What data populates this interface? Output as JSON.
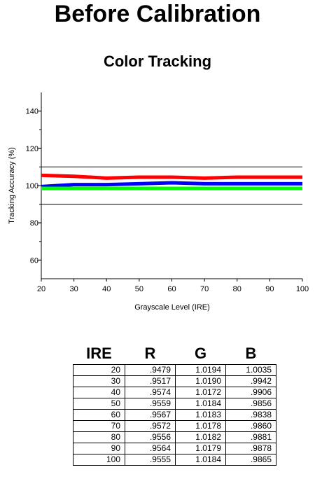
{
  "page": {
    "title": "Before Calibration"
  },
  "chart_data": {
    "type": "line",
    "title": "Color Tracking",
    "xlabel": "Grayscale Level (IRE)",
    "ylabel": "Tracking Accuracy (%)",
    "xlim": [
      20,
      100
    ],
    "ylim": [
      50,
      150
    ],
    "xticks": [
      20,
      30,
      40,
      50,
      60,
      70,
      80,
      90,
      100
    ],
    "yticks": [
      60,
      80,
      100,
      120,
      140
    ],
    "reference_lines": [
      110,
      90
    ],
    "grid": false,
    "x": [
      20,
      30,
      40,
      50,
      60,
      70,
      80,
      90,
      100
    ],
    "series": [
      {
        "color": "#ff0000",
        "values": [
          105.5,
          105.0,
          104.0,
          104.5,
          104.5,
          104.0,
          104.5,
          104.5,
          104.5
        ]
      },
      {
        "color": "#0000ff",
        "values": [
          99.5,
          100.5,
          100.5,
          101.0,
          101.5,
          101.0,
          101.0,
          101.0,
          101.0
        ]
      },
      {
        "color": "#00ff00",
        "values": [
          98.5,
          98.5,
          98.5,
          98.5,
          98.5,
          98.5,
          98.5,
          98.5,
          98.5
        ]
      }
    ]
  },
  "table": {
    "headers": [
      "IRE",
      "R",
      "G",
      "B"
    ],
    "rows": [
      [
        "20",
        ".9479",
        "1.0194",
        "1.0035"
      ],
      [
        "30",
        ".9517",
        "1.0190",
        ".9942"
      ],
      [
        "40",
        ".9574",
        "1.0172",
        ".9906"
      ],
      [
        "50",
        ".9559",
        "1.0184",
        ".9856"
      ],
      [
        "60",
        ".9567",
        "1.0183",
        ".9838"
      ],
      [
        "70",
        ".9572",
        "1.0178",
        ".9860"
      ],
      [
        "80",
        ".9556",
        "1.0182",
        ".9881"
      ],
      [
        "90",
        ".9564",
        "1.0179",
        ".9878"
      ],
      [
        "100",
        ".9555",
        "1.0184",
        ".9865"
      ]
    ]
  }
}
